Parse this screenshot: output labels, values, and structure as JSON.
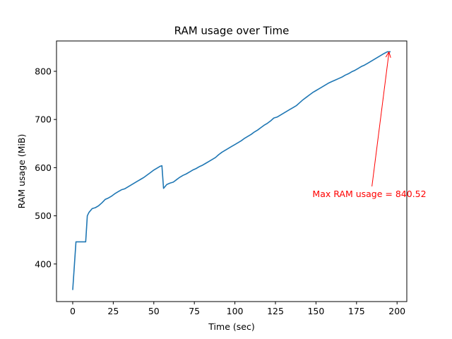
{
  "chart_data": {
    "type": "line",
    "title": "RAM usage over Time",
    "xlabel": "Time (sec)",
    "ylabel": "RAM usage (MiB)",
    "xlim": [
      -10,
      206
    ],
    "ylim": [
      322,
      863
    ],
    "xticks": [
      0,
      25,
      50,
      75,
      100,
      125,
      150,
      175,
      200
    ],
    "yticks": [
      400,
      500,
      600,
      700,
      800
    ],
    "grid": false,
    "line_color": "#1f77b4",
    "series": [
      {
        "x": [
          0,
          2,
          4,
          6,
          8,
          9,
          10,
          12,
          14,
          16,
          18,
          20,
          22,
          24,
          26,
          28,
          30,
          32,
          34,
          36,
          38,
          40,
          42,
          44,
          46,
          48,
          50,
          52,
          54,
          55,
          56,
          58,
          60,
          62,
          64,
          66,
          68,
          70,
          72,
          74,
          76,
          78,
          80,
          82,
          84,
          86,
          88,
          90,
          92,
          94,
          96,
          98,
          100,
          102,
          104,
          106,
          108,
          110,
          112,
          114,
          116,
          118,
          120,
          122,
          124,
          126,
          128,
          130,
          132,
          134,
          136,
          138,
          140,
          142,
          144,
          146,
          148,
          150,
          152,
          154,
          156,
          158,
          160,
          162,
          164,
          166,
          168,
          170,
          172,
          174,
          176,
          178,
          180,
          182,
          184,
          186,
          188,
          190,
          192,
          194,
          196
        ],
        "y": [
          346,
          446,
          446,
          446,
          446,
          500,
          507,
          515,
          517,
          521,
          527,
          534,
          537,
          541,
          546,
          550,
          554,
          556,
          560,
          564,
          568,
          572,
          576,
          580,
          585,
          590,
          595,
          599,
          603,
          604,
          557,
          565,
          568,
          570,
          575,
          580,
          584,
          587,
          591,
          595,
          598,
          602,
          605,
          609,
          613,
          617,
          621,
          627,
          632,
          636,
          640,
          644,
          648,
          652,
          656,
          661,
          665,
          669,
          674,
          678,
          683,
          688,
          692,
          697,
          703,
          705,
          709,
          713,
          717,
          721,
          725,
          729,
          735,
          741,
          746,
          751,
          756,
          760,
          764,
          768,
          772,
          776,
          779,
          782,
          785,
          788,
          792,
          795,
          799,
          802,
          806,
          810,
          813,
          817,
          821,
          825,
          829,
          833,
          837,
          840.52,
          840.52
        ]
      }
    ],
    "annotation": {
      "text": "Max RAM usage = 840.52",
      "point": [
        195,
        840.52
      ],
      "text_anchor_data": [
        184.5,
        561
      ],
      "color": "#ff0000"
    }
  }
}
